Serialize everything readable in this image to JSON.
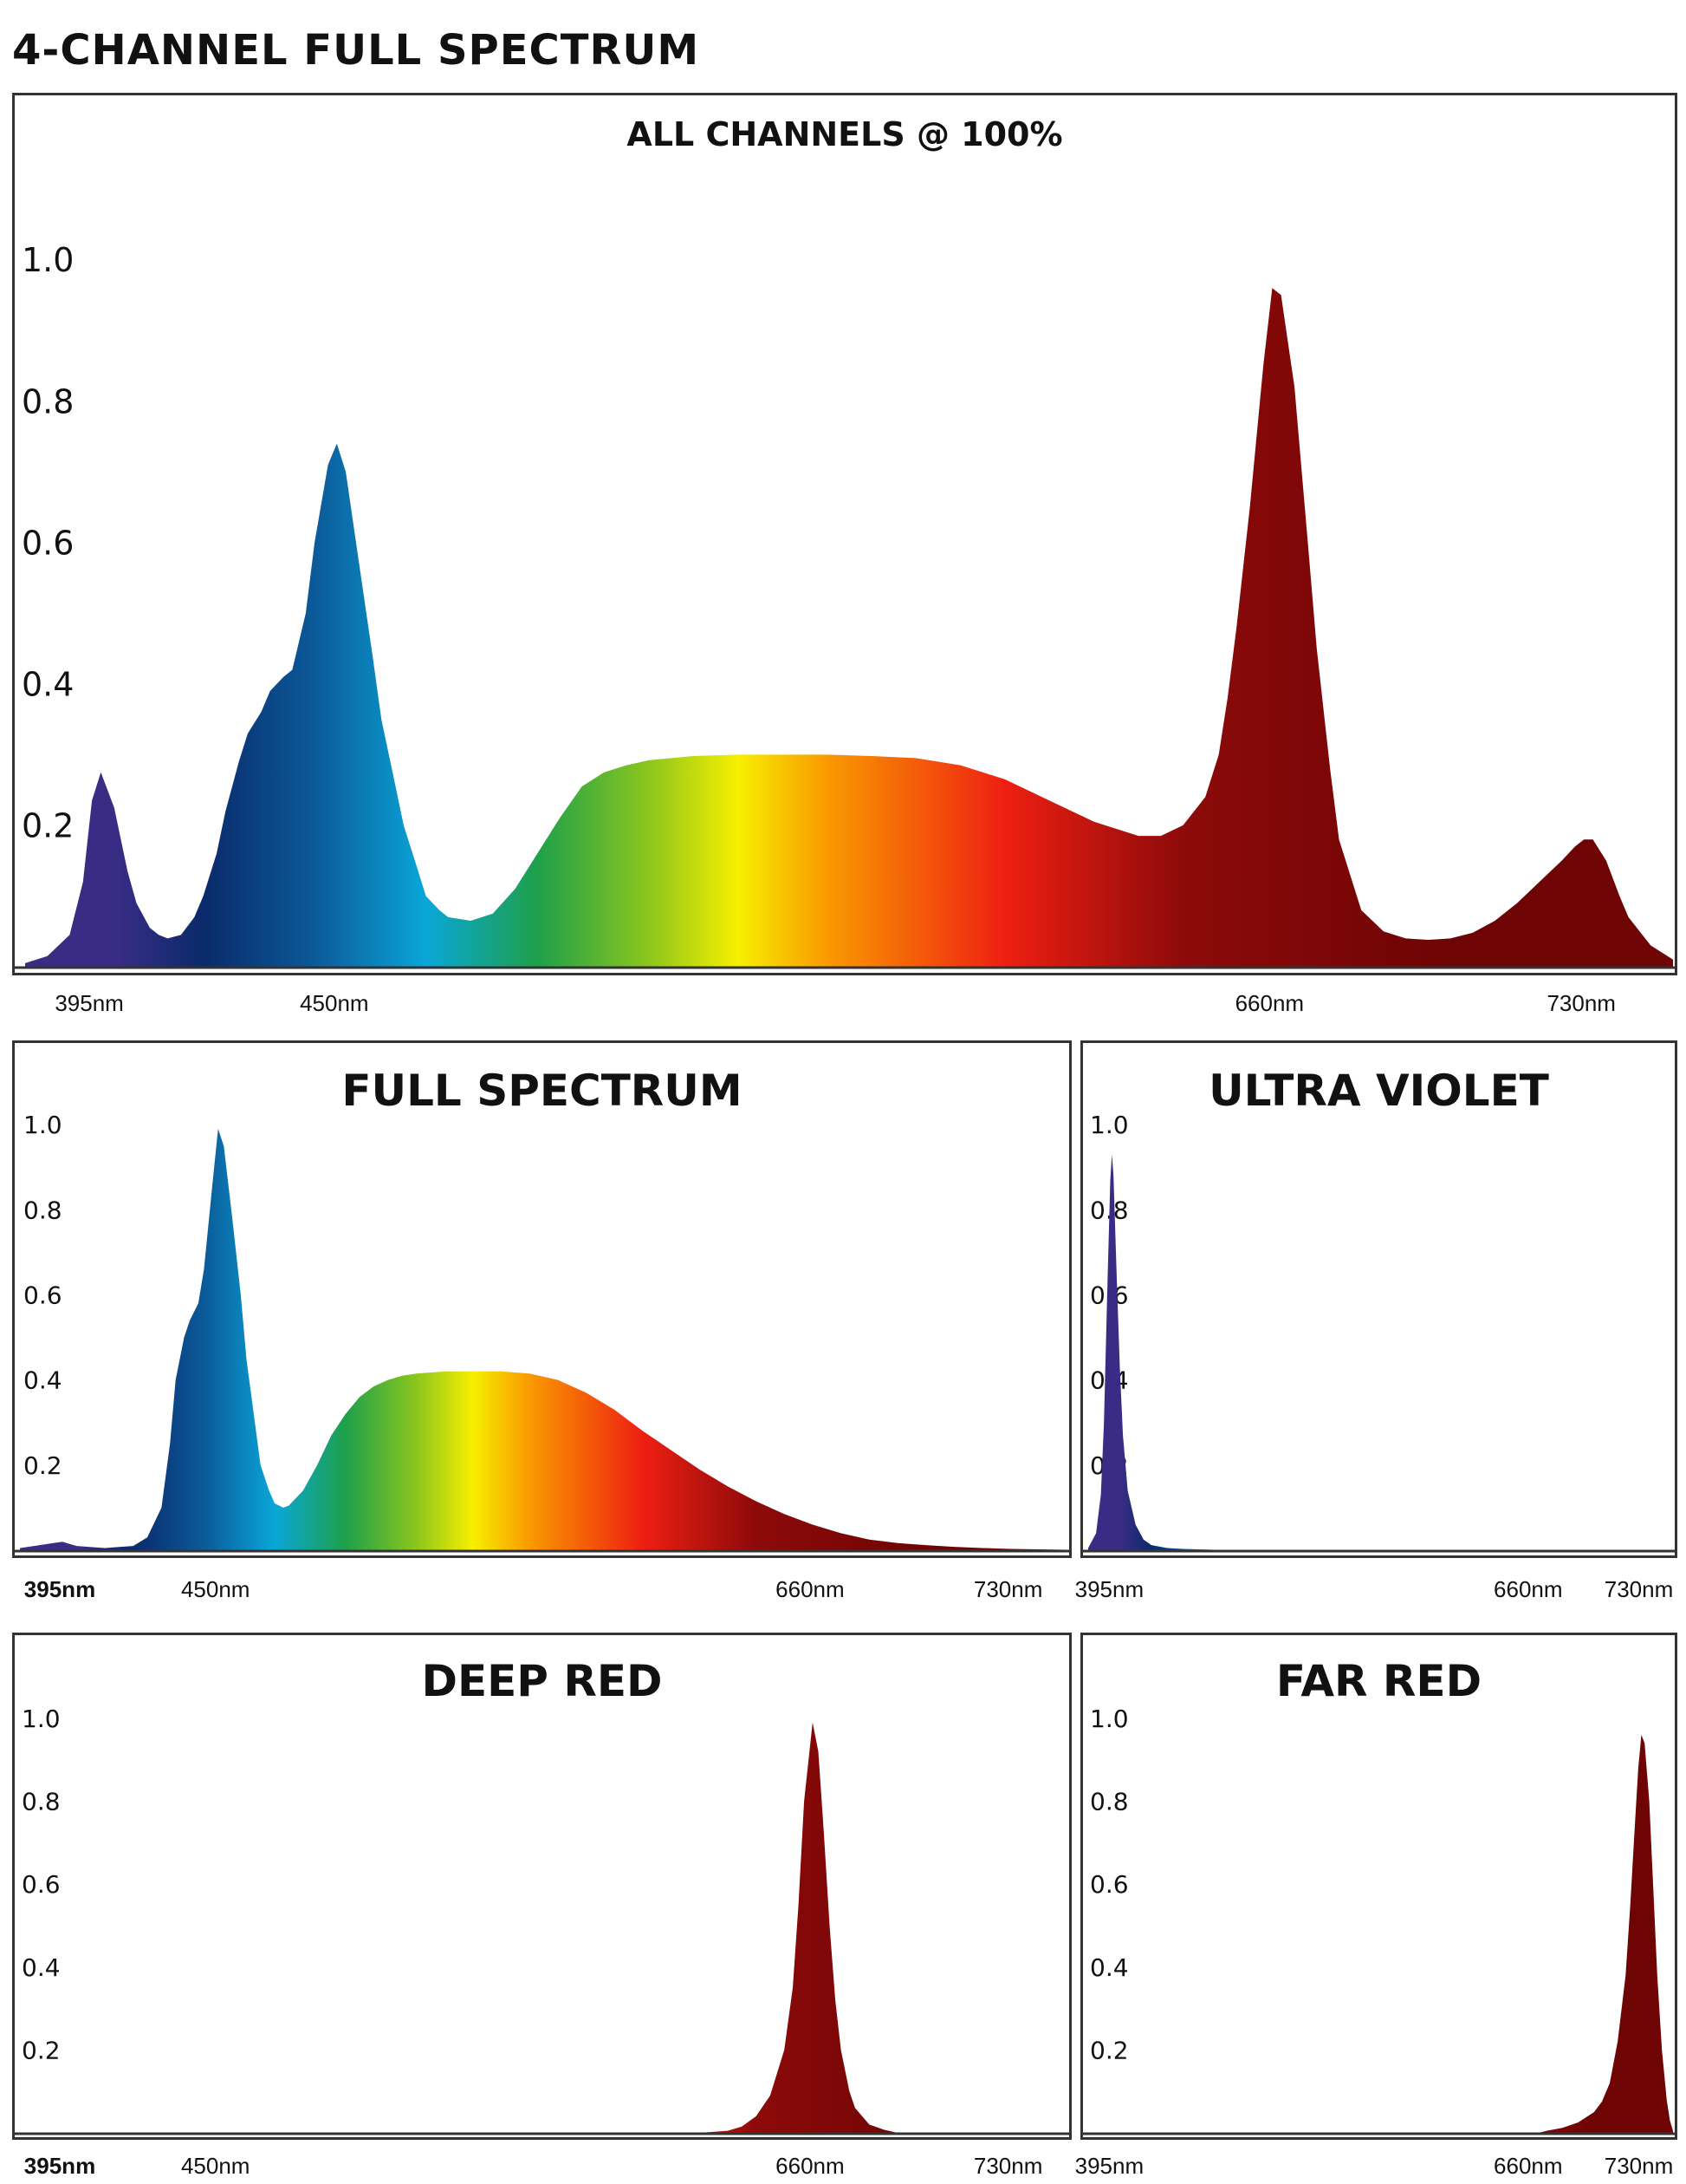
{
  "page_title": "4-CHANNEL FULL SPECTRUM",
  "colors": {
    "frame": "#333333",
    "violet": "#3a2c85",
    "blue": "#0b5a99",
    "cyan": "#0aa6d8",
    "green": "#1ea04a",
    "yellow": "#f7ef00",
    "orange": "#fa9a00",
    "red": "#ee1f12",
    "deep_red": "#8d0a0a",
    "dark_red": "#6e0404"
  },
  "chart_data": [
    {
      "id": "all",
      "type": "area",
      "title": "ALL CHANNELS @ 100%",
      "xlabel": "",
      "ylabel": "",
      "xlim": [
        380,
        750
      ],
      "ylim": [
        0,
        1.1
      ],
      "y_ticks": [
        "1.0",
        "0.8",
        "0.6",
        "0.4",
        "0.2"
      ],
      "x_ticks": [
        {
          "value": 395,
          "label": "395nm"
        },
        {
          "value": 450,
          "label": "450nm"
        },
        {
          "value": 660,
          "label": "660nm"
        },
        {
          "value": 730,
          "label": "730nm"
        }
      ],
      "series": [
        {
          "name": "All Channels",
          "x": [
            380,
            385,
            390,
            393,
            395,
            397,
            400,
            403,
            405,
            408,
            410,
            412,
            415,
            418,
            420,
            423,
            425,
            428,
            430,
            433,
            435,
            438,
            440,
            443,
            445,
            448,
            450,
            452,
            455,
            458,
            460,
            463,
            465,
            468,
            470,
            473,
            475,
            480,
            485,
            490,
            495,
            500,
            505,
            510,
            515,
            520,
            530,
            540,
            550,
            560,
            570,
            580,
            590,
            600,
            610,
            620,
            630,
            635,
            640,
            645,
            648,
            650,
            652,
            655,
            658,
            660,
            662,
            665,
            668,
            670,
            673,
            675,
            680,
            685,
            690,
            695,
            700,
            705,
            710,
            715,
            720,
            725,
            728,
            730,
            732,
            735,
            738,
            740,
            745,
            750
          ],
          "y": [
            0.005,
            0.015,
            0.045,
            0.12,
            0.235,
            0.275,
            0.225,
            0.135,
            0.09,
            0.055,
            0.045,
            0.04,
            0.045,
            0.07,
            0.1,
            0.16,
            0.22,
            0.29,
            0.33,
            0.36,
            0.39,
            0.41,
            0.42,
            0.5,
            0.6,
            0.71,
            0.74,
            0.7,
            0.57,
            0.44,
            0.35,
            0.26,
            0.2,
            0.14,
            0.1,
            0.08,
            0.07,
            0.065,
            0.075,
            0.11,
            0.16,
            0.21,
            0.255,
            0.275,
            0.285,
            0.292,
            0.298,
            0.3,
            0.3,
            0.3,
            0.298,
            0.295,
            0.285,
            0.265,
            0.235,
            0.205,
            0.185,
            0.185,
            0.2,
            0.24,
            0.3,
            0.38,
            0.48,
            0.65,
            0.85,
            0.96,
            0.95,
            0.82,
            0.6,
            0.45,
            0.28,
            0.18,
            0.08,
            0.05,
            0.04,
            0.038,
            0.04,
            0.048,
            0.065,
            0.09,
            0.12,
            0.15,
            0.17,
            0.18,
            0.18,
            0.15,
            0.1,
            0.07,
            0.03,
            0.01
          ]
        }
      ]
    },
    {
      "id": "full",
      "type": "area",
      "title": "FULL SPECTRUM",
      "xlabel": "",
      "ylabel": "",
      "xlim": [
        380,
        750
      ],
      "ylim": [
        0,
        1.1
      ],
      "y_ticks": [
        "1.0",
        "0.8",
        "0.6",
        "0.4",
        "0.2"
      ],
      "x_ticks": [
        {
          "value": 395,
          "label": "395nm",
          "bold": true
        },
        {
          "value": 450,
          "label": "450nm"
        },
        {
          "value": 660,
          "label": "660nm"
        },
        {
          "value": 730,
          "label": "730nm"
        }
      ],
      "series": [
        {
          "name": "Full Spectrum",
          "x": [
            380,
            385,
            390,
            395,
            400,
            410,
            420,
            425,
            430,
            433,
            435,
            438,
            440,
            443,
            445,
            448,
            450,
            452,
            455,
            458,
            460,
            463,
            465,
            468,
            470,
            473,
            475,
            480,
            485,
            490,
            495,
            500,
            505,
            510,
            515,
            520,
            530,
            540,
            550,
            560,
            570,
            580,
            590,
            600,
            610,
            620,
            630,
            640,
            650,
            660,
            670,
            680,
            690,
            700,
            710,
            720,
            730,
            740,
            750
          ],
          "y": [
            0.005,
            0.01,
            0.015,
            0.02,
            0.01,
            0.005,
            0.01,
            0.03,
            0.1,
            0.25,
            0.4,
            0.5,
            0.54,
            0.58,
            0.66,
            0.86,
            0.99,
            0.95,
            0.78,
            0.6,
            0.45,
            0.3,
            0.2,
            0.14,
            0.11,
            0.1,
            0.105,
            0.14,
            0.2,
            0.27,
            0.32,
            0.36,
            0.385,
            0.4,
            0.41,
            0.415,
            0.42,
            0.42,
            0.42,
            0.415,
            0.4,
            0.37,
            0.33,
            0.28,
            0.235,
            0.19,
            0.15,
            0.115,
            0.085,
            0.06,
            0.04,
            0.025,
            0.017,
            0.012,
            0.008,
            0.005,
            0.003,
            0.002,
            0.001
          ]
        }
      ]
    },
    {
      "id": "uv",
      "type": "area",
      "title": "ULTRA VIOLET",
      "xlabel": "",
      "ylabel": "",
      "xlim": [
        380,
        750
      ],
      "ylim": [
        0,
        1.1
      ],
      "y_ticks": [
        "1.0",
        "0.8",
        "0.6",
        "0.4",
        "0.2"
      ],
      "x_ticks": [
        {
          "value": 395,
          "label": "395nm"
        },
        {
          "value": 660,
          "label": "660nm"
        },
        {
          "value": 730,
          "label": "730nm"
        }
      ],
      "series": [
        {
          "name": "Ultra Violet",
          "x": [
            380,
            385,
            388,
            390,
            392,
            394,
            395,
            396,
            398,
            400,
            402,
            405,
            410,
            415,
            420,
            430,
            440,
            450,
            470,
            750
          ],
          "y": [
            0.005,
            0.04,
            0.13,
            0.3,
            0.6,
            0.87,
            0.93,
            0.88,
            0.65,
            0.43,
            0.27,
            0.14,
            0.06,
            0.025,
            0.012,
            0.005,
            0.003,
            0.002,
            0.0,
            0.0
          ]
        }
      ]
    },
    {
      "id": "deep-red",
      "type": "area",
      "title": "DEEP RED",
      "xlabel": "",
      "ylabel": "",
      "xlim": [
        380,
        750
      ],
      "ylim": [
        0,
        1.1
      ],
      "y_ticks": [
        "1.0",
        "0.8",
        "0.6",
        "0.4",
        "0.2"
      ],
      "x_ticks": [
        {
          "value": 395,
          "label": "395nm",
          "bold": true
        },
        {
          "value": 450,
          "label": "450nm"
        },
        {
          "value": 660,
          "label": "660nm"
        },
        {
          "value": 730,
          "label": "730nm"
        }
      ],
      "series": [
        {
          "name": "Deep Red",
          "x": [
            380,
            620,
            630,
            635,
            640,
            645,
            650,
            653,
            655,
            657,
            660,
            662,
            664,
            666,
            668,
            670,
            673,
            675,
            680,
            685,
            690,
            750
          ],
          "y": [
            0.0,
            0.0,
            0.005,
            0.015,
            0.04,
            0.09,
            0.2,
            0.35,
            0.55,
            0.8,
            0.99,
            0.92,
            0.72,
            0.5,
            0.32,
            0.2,
            0.1,
            0.06,
            0.02,
            0.008,
            0.0,
            0.0
          ]
        }
      ]
    },
    {
      "id": "far-red",
      "type": "area",
      "title": "FAR RED",
      "xlabel": "",
      "ylabel": "",
      "xlim": [
        380,
        750
      ],
      "ylim": [
        0,
        1.1
      ],
      "y_ticks": [
        "1.0",
        "0.8",
        "0.6",
        "0.4",
        "0.2"
      ],
      "x_ticks": [
        {
          "value": 395,
          "label": "395nm"
        },
        {
          "value": 660,
          "label": "660nm"
        },
        {
          "value": 730,
          "label": "730nm"
        }
      ],
      "series": [
        {
          "name": "Far Red",
          "x": [
            380,
            665,
            670,
            680,
            690,
            700,
            705,
            710,
            715,
            720,
            723,
            726,
            728,
            730,
            732,
            735,
            738,
            740,
            743,
            746,
            748,
            750
          ],
          "y": [
            0.0,
            0.0,
            0.005,
            0.012,
            0.025,
            0.05,
            0.075,
            0.12,
            0.22,
            0.38,
            0.55,
            0.75,
            0.88,
            0.96,
            0.94,
            0.8,
            0.55,
            0.38,
            0.2,
            0.08,
            0.03,
            0.005
          ]
        }
      ]
    }
  ]
}
